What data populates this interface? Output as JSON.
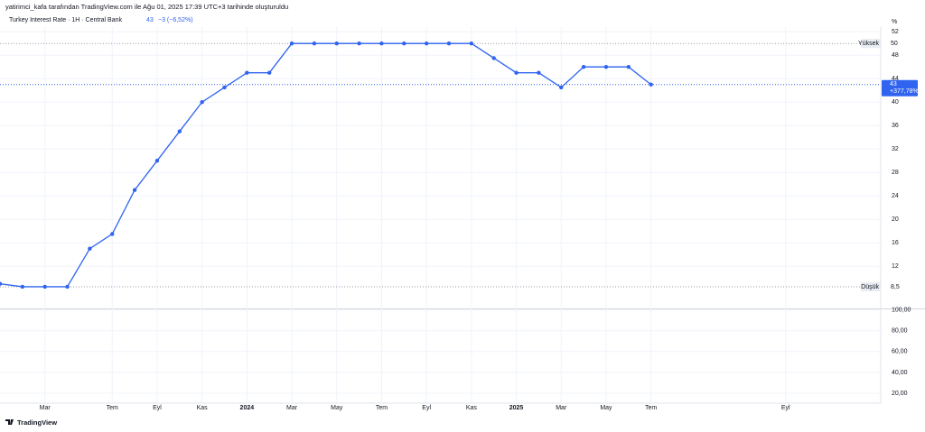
{
  "header": "yatirimci_kafa tarafından TradingView.com ile Ağu 01, 2025 17:39 UTC+3 tarihinde oluşturuldu",
  "footer": "TradingView",
  "chart_data": {
    "type": "line",
    "title": "Turkey Interest Rate · 1H · Central Bank",
    "last_value_label": "43",
    "change_label": "−3 (−6,52%)",
    "unit_label": "%",
    "categories": [
      null,
      null,
      "Mar",
      null,
      null,
      "Tem",
      null,
      "Eyl",
      null,
      "Kas",
      null,
      "2024",
      null,
      "Mar",
      null,
      "May",
      null,
      "Tem",
      null,
      "Eyl",
      null,
      "Kas",
      null,
      "2025",
      null,
      "Mar",
      null,
      "May",
      null,
      "Tem",
      null,
      null,
      null,
      null,
      null,
      "Eyl"
    ],
    "series": [
      {
        "name": "Turkey Interest Rate",
        "color": "#2f63f0",
        "values": [
          9,
          8.5,
          8.5,
          8.5,
          15,
          17.5,
          25,
          30,
          35,
          40,
          42.5,
          45,
          45,
          50,
          50,
          50,
          50,
          50,
          50,
          50,
          50,
          50,
          47.5,
          45,
          45,
          42.5,
          46,
          46,
          46,
          43,
          null,
          null,
          null,
          null,
          null,
          null
        ]
      }
    ],
    "ylim": [
      4.8,
      52.8
    ],
    "yticks": [
      12,
      16,
      20,
      24,
      28,
      32,
      36,
      40,
      44,
      48,
      52
    ],
    "grid": true,
    "high": {
      "label": "Yüksek",
      "value": 50,
      "value_label": "50"
    },
    "low": {
      "label": "Düşük",
      "value": 8.5,
      "value_label": "8,5"
    },
    "last": {
      "value": 43,
      "value_label": "43",
      "percent_label": "+377,78%"
    },
    "lower_pane": {
      "ylim": [
        10.5,
        100.5
      ],
      "yticks": [
        {
          "value": 20,
          "label": "20,00"
        },
        {
          "value": 40,
          "label": "40,00"
        },
        {
          "value": 60,
          "label": "60,00"
        },
        {
          "value": 80,
          "label": "80,00"
        },
        {
          "value": 100,
          "label": "100,00"
        }
      ]
    }
  }
}
